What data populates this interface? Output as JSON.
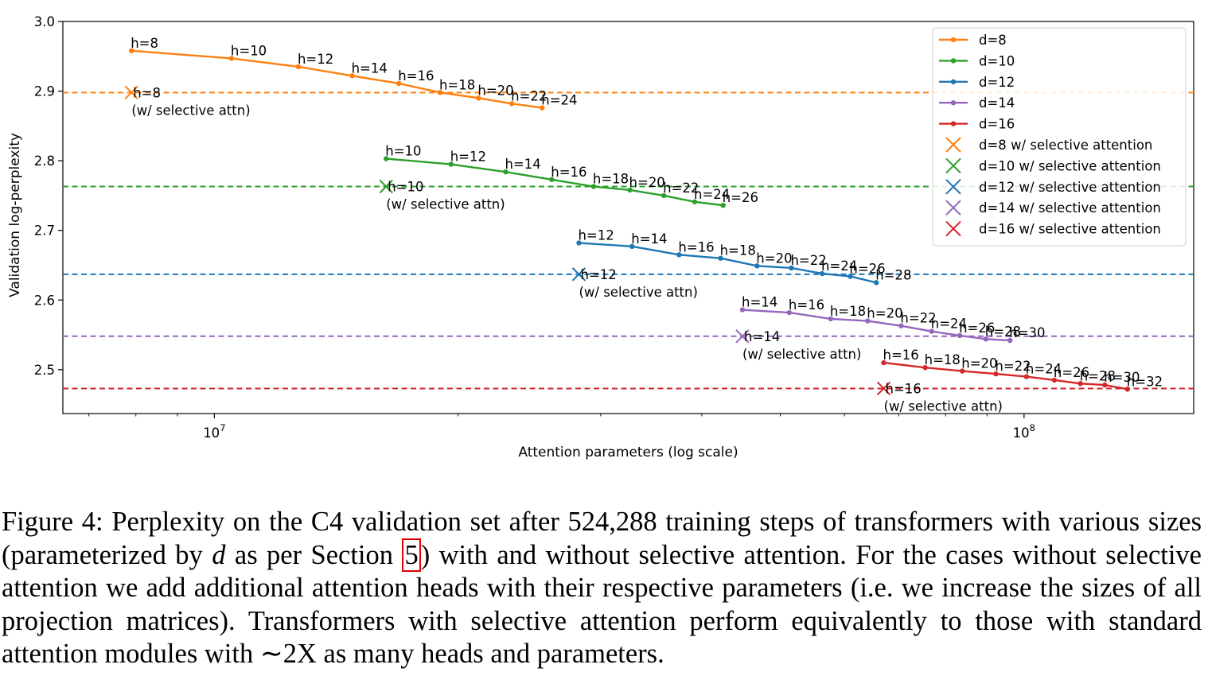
{
  "chart_data": {
    "type": "line",
    "xlabel": "Attention parameters (log scale)",
    "ylabel": "Validation log-perplexity",
    "x_scale": "log",
    "xlim": [
      6500000,
      162000000
    ],
    "ylim": [
      2.437,
      3.0
    ],
    "x_ticks": [
      {
        "value": 10000000,
        "base": "10",
        "exp": "7"
      },
      {
        "value": 100000000,
        "base": "10",
        "exp": "8"
      }
    ],
    "y_ticks": [
      {
        "value": 2.5,
        "label": "2.5"
      },
      {
        "value": 2.6,
        "label": "2.6"
      },
      {
        "value": 2.7,
        "label": "2.7"
      },
      {
        "value": 2.8,
        "label": "2.8"
      },
      {
        "value": 2.9,
        "label": "2.9"
      },
      {
        "value": 3.0,
        "label": "3.0"
      }
    ],
    "grid": false,
    "legend_position": "top-right",
    "series": [
      {
        "name": "d=8",
        "color": "#ff7f0e",
        "points": [
          {
            "x": 7900000,
            "y": 2.958,
            "label": "h=8"
          },
          {
            "x": 10500000,
            "y": 2.947,
            "label": "h=10"
          },
          {
            "x": 12700000,
            "y": 2.935,
            "label": "h=12"
          },
          {
            "x": 14800000,
            "y": 2.922,
            "label": "h=14"
          },
          {
            "x": 16900000,
            "y": 2.911,
            "label": "h=16"
          },
          {
            "x": 19000000,
            "y": 2.898,
            "label": "h=18"
          },
          {
            "x": 21200000,
            "y": 2.89,
            "label": "h=20"
          },
          {
            "x": 23300000,
            "y": 2.882,
            "label": "h=22"
          },
          {
            "x": 25400000,
            "y": 2.876,
            "label": "h=24"
          }
        ]
      },
      {
        "name": "d=10",
        "color": "#2ca02c",
        "points": [
          {
            "x": 16300000,
            "y": 2.803,
            "label": "h=10"
          },
          {
            "x": 19600000,
            "y": 2.795,
            "label": "h=12"
          },
          {
            "x": 22900000,
            "y": 2.784,
            "label": "h=14"
          },
          {
            "x": 26100000,
            "y": 2.773,
            "label": "h=16"
          },
          {
            "x": 29400000,
            "y": 2.763,
            "label": "h=18"
          },
          {
            "x": 32600000,
            "y": 2.758,
            "label": "h=20"
          },
          {
            "x": 35900000,
            "y": 2.75,
            "label": "h=22"
          },
          {
            "x": 39200000,
            "y": 2.741,
            "label": "h=24"
          },
          {
            "x": 42500000,
            "y": 2.736,
            "label": "h=26"
          }
        ]
      },
      {
        "name": "d=12",
        "color": "#1f77b4",
        "points": [
          {
            "x": 28200000,
            "y": 2.682,
            "label": "h=12"
          },
          {
            "x": 32800000,
            "y": 2.677,
            "label": "h=14"
          },
          {
            "x": 37500000,
            "y": 2.665,
            "label": "h=16"
          },
          {
            "x": 42200000,
            "y": 2.66,
            "label": "h=18"
          },
          {
            "x": 46800000,
            "y": 2.649,
            "label": "h=20"
          },
          {
            "x": 51600000,
            "y": 2.646,
            "label": "h=22"
          },
          {
            "x": 56300000,
            "y": 2.638,
            "label": "h=24"
          },
          {
            "x": 61000000,
            "y": 2.634,
            "label": "h=26"
          },
          {
            "x": 65700000,
            "y": 2.625,
            "label": "h=28"
          }
        ]
      },
      {
        "name": "d=14",
        "color": "#9467bd",
        "points": [
          {
            "x": 44900000,
            "y": 2.586,
            "label": "h=14"
          },
          {
            "x": 51300000,
            "y": 2.582,
            "label": "h=16"
          },
          {
            "x": 57700000,
            "y": 2.573,
            "label": "h=18"
          },
          {
            "x": 64100000,
            "y": 2.57,
            "label": "h=20"
          },
          {
            "x": 70500000,
            "y": 2.563,
            "label": "h=22"
          },
          {
            "x": 76900000,
            "y": 2.555,
            "label": "h=24"
          },
          {
            "x": 83300000,
            "y": 2.549,
            "label": "h=26"
          },
          {
            "x": 89700000,
            "y": 2.544,
            "label": "h=28"
          },
          {
            "x": 96100000,
            "y": 2.542,
            "label": "h=30"
          }
        ]
      },
      {
        "name": "d=16",
        "color": "#d62728",
        "points": [
          {
            "x": 67100000,
            "y": 2.51,
            "label": "h=16"
          },
          {
            "x": 75500000,
            "y": 2.503,
            "label": "h=18"
          },
          {
            "x": 83900000,
            "y": 2.498,
            "label": "h=20"
          },
          {
            "x": 92300000,
            "y": 2.494,
            "label": "h=22"
          },
          {
            "x": 100700000,
            "y": 2.49,
            "label": "h=24"
          },
          {
            "x": 109000000,
            "y": 2.485,
            "label": "h=26"
          },
          {
            "x": 117400000,
            "y": 2.48,
            "label": "h=28"
          },
          {
            "x": 125800000,
            "y": 2.478,
            "label": "h=30"
          },
          {
            "x": 134200000,
            "y": 2.472,
            "label": "h=32"
          }
        ]
      }
    ],
    "selective": [
      {
        "name": "d=8 w/ selective attention",
        "color": "#ff7f0e",
        "x": 7900000,
        "y": 2.898,
        "label": "h=8",
        "note": "(w/ selective attn)"
      },
      {
        "name": "d=10 w/ selective attention",
        "color": "#2ca02c",
        "x": 16300000,
        "y": 2.763,
        "label": "h=10",
        "note": "(w/ selective attn)"
      },
      {
        "name": "d=12 w/ selective attention",
        "color": "#1f77b4",
        "x": 28200000,
        "y": 2.637,
        "label": "h=12",
        "note": "(w/ selective attn)"
      },
      {
        "name": "d=14 w/ selective attention",
        "color": "#9467bd",
        "x": 44900000,
        "y": 2.548,
        "label": "h=14",
        "note": "(w/ selective attn)"
      },
      {
        "name": "d=16 w/ selective attention",
        "color": "#d62728",
        "x": 67100000,
        "y": 2.473,
        "label": "h=16",
        "note": "(w/ selective attn)"
      }
    ]
  },
  "caption": {
    "part1": "Figure 4: Perplexity on the C4 validation set after 524,288 training steps of transformers with various sizes (parameterized by ",
    "var": "d",
    "part2": " as per Section ",
    "ref": "5",
    "part3": ") with and without selective attention.  For the cases without selective attention we add additional attention heads with their respective parameters (i.e. we increase the sizes of all projection matrices).  Transformers with selective attention perform equivalently to those with standard attention modules with ∼2X as many heads and parameters."
  }
}
